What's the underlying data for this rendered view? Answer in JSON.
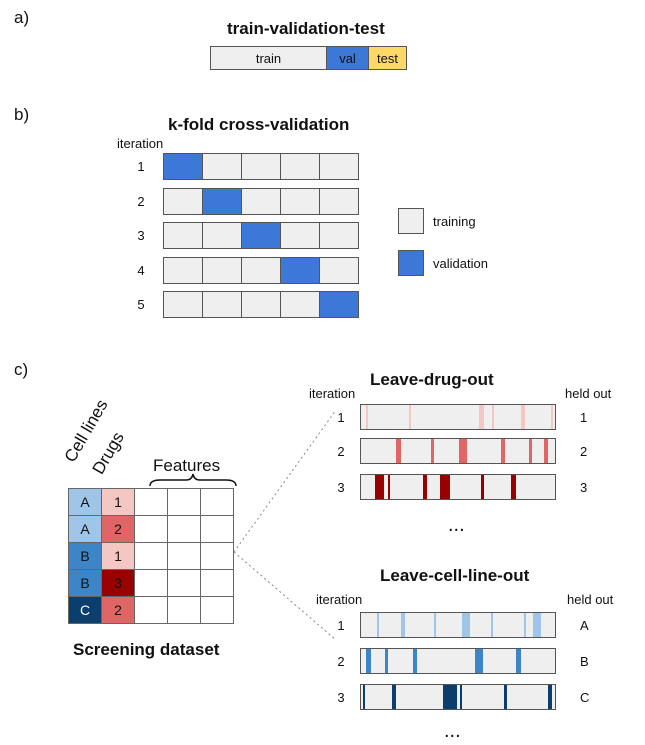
{
  "colors": {
    "blue": "#3c78d8",
    "yellow": "#ffd966",
    "gray": "#efefef",
    "drug_light": "#f4c7c3",
    "drug_mid": "#e06666",
    "drug_dark": "#990000",
    "cell_light": "#9fc5e8",
    "cell_mid": "#3d85c6",
    "cell_dark": "#0b3e6d"
  },
  "panel_a": {
    "label": "a)",
    "title": "train-validation-test",
    "segments": [
      {
        "label": "train",
        "fraction": 0.59,
        "color": "#efefef"
      },
      {
        "label": "val",
        "fraction": 0.22,
        "color": "#3c78d8"
      },
      {
        "label": "test",
        "fraction": 0.19,
        "color": "#ffd966"
      }
    ]
  },
  "panel_b": {
    "label": "b)",
    "title": "k-fold cross-validation",
    "iteration_header": "iteration",
    "iterations": [
      "1",
      "2",
      "3",
      "4",
      "5"
    ],
    "folds": 5,
    "validation_fold_index": [
      0,
      1,
      2,
      3,
      4
    ],
    "legend": {
      "training": "training",
      "validation": "validation"
    }
  },
  "panel_c": {
    "label": "c)",
    "dataset": {
      "col_headers": [
        "Cell lines",
        "Drugs"
      ],
      "features_label": "Features",
      "cell_lines": [
        "A",
        "A",
        "B",
        "B",
        "C"
      ],
      "drugs": [
        "1",
        "2",
        "1",
        "3",
        "2"
      ],
      "caption": "Screening dataset"
    },
    "leave_drug_out": {
      "title": "Leave-drug-out",
      "iteration_header": "iteration",
      "held_out_header": "held out",
      "iterations": [
        "1",
        "2",
        "3"
      ],
      "held_out": [
        "1",
        "2",
        "3"
      ],
      "ellipsis": "..."
    },
    "leave_cell_line_out": {
      "title": "Leave-cell-line-out",
      "iteration_header": "iteration",
      "held_out_header": "held out",
      "iterations": [
        "1",
        "2",
        "3"
      ],
      "held_out": [
        "A",
        "B",
        "C"
      ],
      "ellipsis": "..."
    }
  }
}
